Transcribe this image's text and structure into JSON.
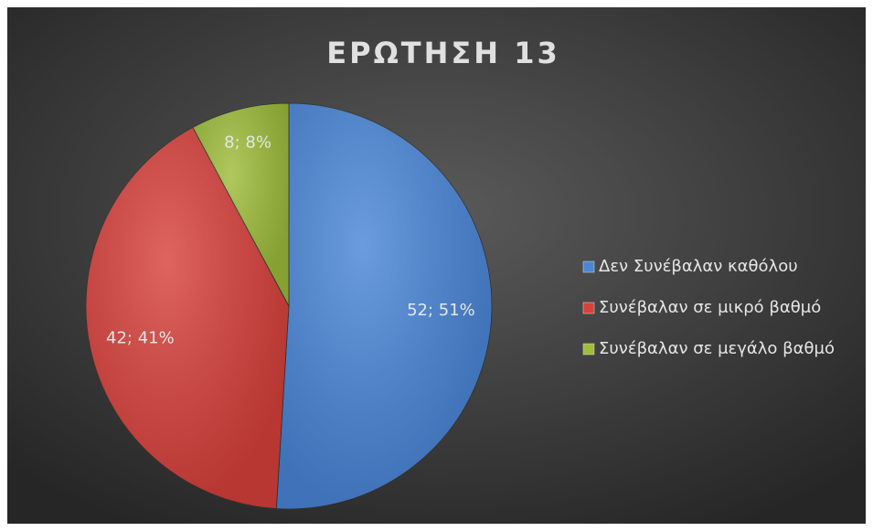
{
  "chart_data": {
    "type": "pie",
    "title": "ΕΡΩΤΗΣΗ 13",
    "categories": [
      "Δεν Συνέβαλαν καθόλου",
      "Συνέβαλαν σε  μικρό βαθμό",
      "Συνέβαλαν σε μεγάλο βαθμό"
    ],
    "values": [
      52,
      42,
      8
    ],
    "value_labels": [
      "52; 51%",
      "42; 41%",
      "8; 8%"
    ],
    "colors": [
      "#4a86d8",
      "#d8413c",
      "#9dbd3b"
    ],
    "legend": "right"
  }
}
